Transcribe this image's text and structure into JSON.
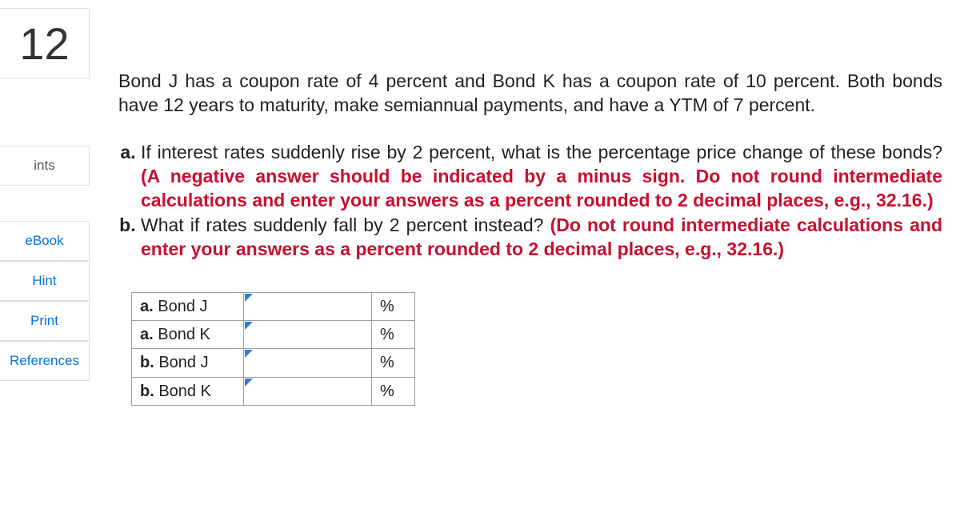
{
  "question_number": "12",
  "sidebar": {
    "points_label": "ints",
    "ebook_label": "eBook",
    "hint_label": "Hint",
    "print_label": "Print",
    "references_label": "References"
  },
  "content": {
    "intro": "Bond J has a coupon rate of 4 percent and Bond K has a coupon rate of 10 percent. Both bonds have 12 years to maturity, make semiannual payments, and have a YTM of 7 percent.",
    "question_a_text": "If interest rates suddenly rise by 2 percent, what is the percentage price change of these bonds? ",
    "question_a_red": "(A negative answer should be indicated by a minus sign. Do not round intermediate calculations and enter your answers as a percent rounded to 2 decimal places, e.g., 32.16.)",
    "question_b_text": "What if rates suddenly fall by 2 percent instead? ",
    "question_b_red": "(Do not round intermediate calculations and enter your answers as a percent rounded to 2 decimal places, e.g., 32.16.)"
  },
  "answer_table": {
    "rows": [
      {
        "letter": "a.",
        "bond": "Bond J",
        "value": "",
        "unit": "%"
      },
      {
        "letter": "a.",
        "bond": "Bond K",
        "value": "",
        "unit": "%"
      },
      {
        "letter": "b.",
        "bond": "Bond J",
        "value": "",
        "unit": "%"
      },
      {
        "letter": "b.",
        "bond": "Bond K",
        "value": "",
        "unit": "%"
      }
    ]
  },
  "colors": {
    "link_color": "#0073e6",
    "emphasis_color": "#c8102e",
    "border_color": "#9e9e9e",
    "triangle_color": "#2b7de0",
    "text_color": "#222222",
    "background": "#ffffff"
  }
}
